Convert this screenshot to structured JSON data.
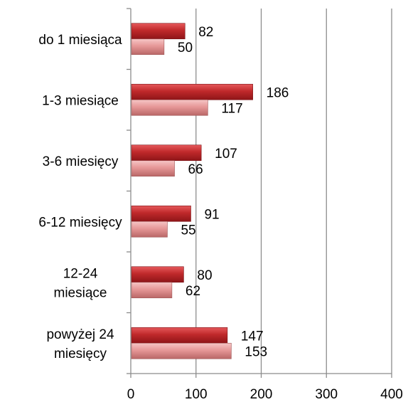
{
  "chart_data": {
    "type": "bar",
    "orientation": "horizontal",
    "categories": [
      [
        "do 1 miesiąca"
      ],
      [
        "1-3 miesiące"
      ],
      [
        "3-6 miesięcy"
      ],
      [
        "6-12 miesięcy"
      ],
      [
        "12-24",
        "miesiące"
      ],
      [
        "powyżej 24",
        "miesięcy"
      ]
    ],
    "series": [
      {
        "values": [
          82,
          186,
          107,
          91,
          80,
          147
        ],
        "color": "#c0292b"
      },
      {
        "values": [
          50,
          117,
          66,
          55,
          62,
          153
        ],
        "color": "#e69797"
      }
    ],
    "xlim": [
      0,
      400
    ],
    "xticks": [
      0,
      100,
      200,
      300,
      400
    ],
    "grid": "vertical",
    "legend": "none"
  }
}
